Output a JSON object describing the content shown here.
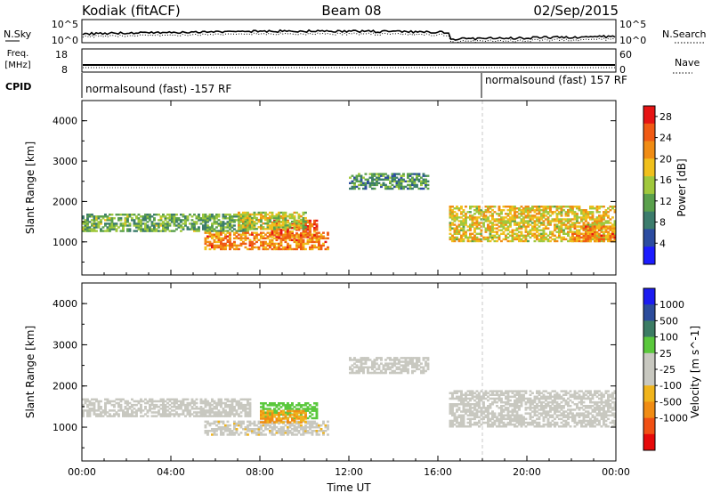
{
  "header": {
    "station": "Kodiak (fitACF)",
    "beam": "Beam 08",
    "date": "02/Sep/2015"
  },
  "panels": {
    "nsky_label": "N.Sky",
    "nsky_ticks": [
      "10^5",
      "10^0"
    ],
    "nsearch_label": "N.Search",
    "freq_label": "Freq.",
    "freq_unit": "[MHz]",
    "freq_ticks": [
      "18",
      "8"
    ],
    "nave_label": "Nave",
    "nave_ticks": [
      "60",
      "0"
    ],
    "cpid_label": "CPID",
    "cpid_segments": [
      "normalsound (fast) -157 RF",
      "normalsound (fast) 157 RF"
    ]
  },
  "colors": {
    "power_scale": [
      "#1c1cff",
      "#2c4ca0",
      "#3c7c6c",
      "#5aa04c",
      "#a0c83c",
      "#f0c01c",
      "#f08c14",
      "#f05a14",
      "#e61414"
    ],
    "velocity_scale": [
      "#1c1cf0",
      "#2c4c9c",
      "#3c7c64",
      "#5ac83c",
      "#c8c8c0",
      "#c8c8c0",
      "#f0b41c",
      "#f08c14",
      "#f05014",
      "#e60a0a"
    ],
    "ground_scatter": "#b4b4b4"
  },
  "chart_data": [
    {
      "type": "heatmap",
      "title": "Power",
      "xlabel": "Time UT",
      "ylabel": "Slant Range [km]",
      "xticks": [
        "00:00",
        "04:00",
        "08:00",
        "12:00",
        "16:00",
        "20:00",
        "00:00"
      ],
      "xlim_hours": [
        0,
        24
      ],
      "yticks": [
        "1000",
        "2000",
        "3000",
        "4000"
      ],
      "ylim_km": [
        180,
        4500
      ],
      "colorbar": {
        "label": "Power [dB]",
        "ticks": [
          "4",
          "8",
          "12",
          "16",
          "20",
          "24",
          "28"
        ],
        "range": [
          0,
          30
        ]
      },
      "echo_regions": [
        {
          "t0": 0.0,
          "t1": 7.5,
          "r0": 1250,
          "r1": 1700,
          "value": 12
        },
        {
          "t0": 5.5,
          "t1": 11.0,
          "r0": 800,
          "r1": 1250,
          "value": 22
        },
        {
          "t0": 8.5,
          "t1": 10.5,
          "r0": 1100,
          "r1": 1550,
          "value": 24
        },
        {
          "t0": 7.0,
          "t1": 10.0,
          "r0": 1300,
          "r1": 1750,
          "value": 16
        },
        {
          "t0": 12.0,
          "t1": 15.5,
          "r0": 2300,
          "r1": 2700,
          "value": 10
        },
        {
          "t0": 16.5,
          "t1": 24.0,
          "r0": 1000,
          "r1": 1900,
          "value": 18
        },
        {
          "t0": 22.0,
          "t1": 24.0,
          "r0": 1000,
          "r1": 1400,
          "value": 22
        }
      ]
    },
    {
      "type": "heatmap",
      "title": "Velocity",
      "xlabel": "Time UT",
      "ylabel": "Slant Range [km]",
      "xticks": [
        "00:00",
        "04:00",
        "08:00",
        "12:00",
        "16:00",
        "20:00",
        "00:00"
      ],
      "xlim_hours": [
        0,
        24
      ],
      "yticks": [
        "1000",
        "2000",
        "3000",
        "4000"
      ],
      "ylim_km": [
        180,
        4500
      ],
      "colorbar": {
        "label": "Velocity [m s^-1]",
        "ticks": [
          "1000",
          "500",
          "100",
          "25",
          "-25",
          "-100",
          "-500",
          "-1000"
        ],
        "range": [
          -1000,
          1000
        ]
      },
      "echo_regions": [
        {
          "t0": 0.0,
          "t1": 7.5,
          "r0": 1250,
          "r1": 1700,
          "value": 0
        },
        {
          "t0": 5.5,
          "t1": 11.0,
          "r0": 800,
          "r1": 1150,
          "value": -150
        },
        {
          "t0": 8.0,
          "t1": 10.5,
          "r0": 1200,
          "r1": 1600,
          "value": 300
        },
        {
          "t0": 8.0,
          "t1": 10.0,
          "r0": 1100,
          "r1": 1400,
          "value": -400
        },
        {
          "t0": 12.0,
          "t1": 15.5,
          "r0": 2300,
          "r1": 2700,
          "value": 0
        },
        {
          "t0": 16.5,
          "t1": 24.0,
          "r0": 1000,
          "r1": 1900,
          "value": 0
        }
      ]
    }
  ]
}
